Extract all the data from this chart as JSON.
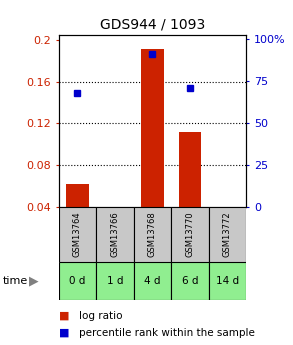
{
  "title": "GDS944 / 1093",
  "samples": [
    "GSM13764",
    "GSM13766",
    "GSM13768",
    "GSM13770",
    "GSM13772"
  ],
  "time_labels": [
    "0 d",
    "1 d",
    "4 d",
    "6 d",
    "14 d"
  ],
  "log_ratio": [
    0.062,
    0,
    0.191,
    0.112,
    0
  ],
  "percentile_rank": [
    68,
    0,
    91,
    71,
    0
  ],
  "left_ylim": [
    0.04,
    0.205
  ],
  "left_yticks": [
    0.04,
    0.08,
    0.12,
    0.16,
    0.2
  ],
  "right_ylim": [
    0,
    102.5
  ],
  "right_yticks": [
    0,
    25,
    50,
    75,
    100
  ],
  "bar_color": "#cc2200",
  "square_color": "#0000cc",
  "bar_width": 0.6,
  "sample_box_color": "#c8c8c8",
  "time_box_color": "#90ee90",
  "legend_bar_label": "log ratio",
  "legend_sq_label": "percentile rank within the sample",
  "title_fontsize": 10,
  "tick_fontsize": 8,
  "label_fontsize": 7
}
